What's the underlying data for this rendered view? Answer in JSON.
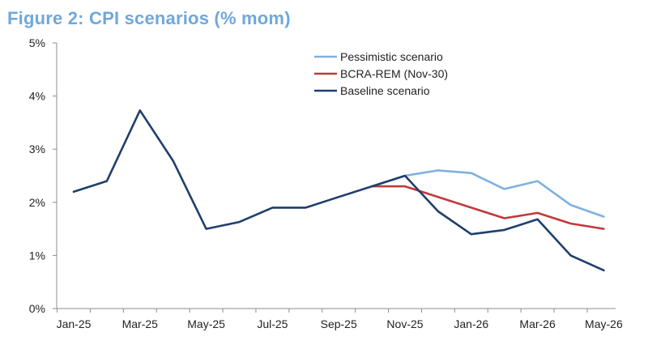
{
  "chart_data": {
    "type": "line",
    "title": "Figure 2: CPI scenarios (% mom)",
    "xlabel": "",
    "ylabel": "",
    "ylim": [
      0,
      5
    ],
    "yticks": [
      0,
      1,
      2,
      3,
      4,
      5
    ],
    "ytick_labels": [
      "0%",
      "1%",
      "2%",
      "3%",
      "4%",
      "5%"
    ],
    "x": [
      "Jan-25",
      "Feb-25",
      "Mar-25",
      "Apr-25",
      "May-25",
      "Jun-25",
      "Jul-25",
      "Aug-25",
      "Sep-25",
      "Oct-25",
      "Nov-25",
      "Dec-25",
      "Jan-26",
      "Feb-26",
      "Mar-26",
      "Apr-26",
      "May-26"
    ],
    "xtick_labels": [
      "Jan-25",
      "Mar-25",
      "May-25",
      "Jul-25",
      "Sep-25",
      "Nov-25",
      "Jan-26",
      "Mar-26",
      "May-26"
    ],
    "grid": false,
    "legend_position": "top-center",
    "series": [
      {
        "name": "Pessimistic scenario",
        "color": "#7eb1e1",
        "values": [
          null,
          null,
          null,
          null,
          null,
          null,
          null,
          null,
          null,
          2.3,
          2.5,
          2.6,
          2.55,
          2.25,
          2.4,
          1.95,
          1.73
        ]
      },
      {
        "name": "BCRA-REM (Nov-30)",
        "color": "#c0393b",
        "values": [
          null,
          null,
          null,
          null,
          null,
          null,
          null,
          null,
          null,
          2.3,
          2.3,
          2.1,
          1.9,
          1.7,
          1.8,
          1.6,
          1.5
        ]
      },
      {
        "name": "Baseline scenario",
        "color": "#1f3f6e",
        "values": [
          2.2,
          2.4,
          3.73,
          2.78,
          1.5,
          1.63,
          1.9,
          1.9,
          2.1,
          2.3,
          2.5,
          1.83,
          1.4,
          1.48,
          1.68,
          1.0,
          0.72
        ]
      }
    ]
  }
}
